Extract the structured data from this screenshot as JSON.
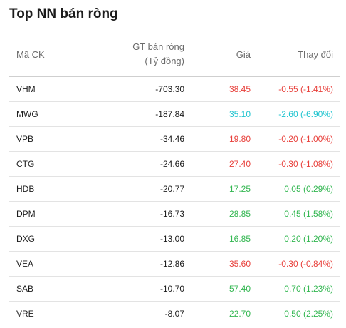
{
  "title": "Top NN bán ròng",
  "columns": {
    "code": "Mã CK",
    "value_line1": "GT bán ròng",
    "value_line2": "(Tỷ đồng)",
    "price": "Giá",
    "change": "Thay đổi"
  },
  "colors": {
    "down": "#e8413c",
    "floor": "#1fc4cf",
    "up": "#34b752",
    "text": "#1c1c1c",
    "header": "#6b6b6b"
  },
  "rows": [
    {
      "code": "VHM",
      "value": "-703.30",
      "price": "38.45",
      "change": "-0.55 (-1.41%)",
      "trend": "down"
    },
    {
      "code": "MWG",
      "value": "-187.84",
      "price": "35.10",
      "change": "-2.60 (-6.90%)",
      "trend": "floor"
    },
    {
      "code": "VPB",
      "value": "-34.46",
      "price": "19.80",
      "change": "-0.20 (-1.00%)",
      "trend": "down"
    },
    {
      "code": "CTG",
      "value": "-24.66",
      "price": "27.40",
      "change": "-0.30 (-1.08%)",
      "trend": "down"
    },
    {
      "code": "HDB",
      "value": "-20.77",
      "price": "17.25",
      "change": "0.05 (0.29%)",
      "trend": "up"
    },
    {
      "code": "DPM",
      "value": "-16.73",
      "price": "28.85",
      "change": "0.45 (1.58%)",
      "trend": "up"
    },
    {
      "code": "DXG",
      "value": "-13.00",
      "price": "16.85",
      "change": "0.20 (1.20%)",
      "trend": "up"
    },
    {
      "code": "VEA",
      "value": "-12.86",
      "price": "35.60",
      "change": "-0.30 (-0.84%)",
      "trend": "down"
    },
    {
      "code": "SAB",
      "value": "-10.70",
      "price": "57.40",
      "change": "0.70 (1.23%)",
      "trend": "up"
    },
    {
      "code": "VRE",
      "value": "-8.07",
      "price": "22.70",
      "change": "0.50 (2.25%)",
      "trend": "up"
    }
  ]
}
